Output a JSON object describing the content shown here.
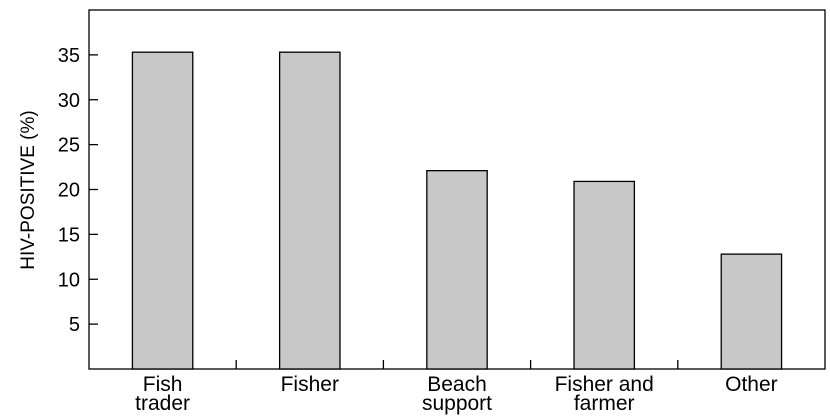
{
  "chart_data": {
    "type": "bar",
    "categories": [
      [
        "Fish",
        "trader"
      ],
      [
        "Fisher"
      ],
      [
        "Beach",
        "support"
      ],
      [
        "Fisher and",
        "farmer"
      ],
      [
        "Other"
      ]
    ],
    "values": [
      35.3,
      35.3,
      22.1,
      20.9,
      12.8
    ],
    "title": "",
    "xlabel": "",
    "ylabel": "HIV-POSITIVE (%)",
    "ylim": [
      0,
      40
    ],
    "yticks": [
      5,
      10,
      15,
      20,
      25,
      30,
      35
    ],
    "grid": false,
    "legend": "none",
    "bar_color": "#c8c8c8",
    "edge_color": "#000000"
  }
}
